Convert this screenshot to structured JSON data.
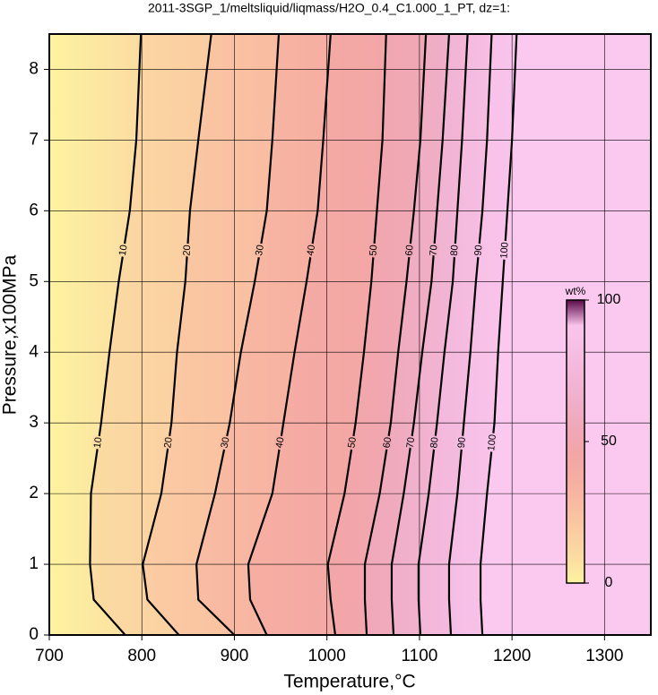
{
  "chart_data": {
    "type": "contour",
    "title": "2011-3SGP_1/meltsliquid/liqmass/H2O_0.4_C1.000_1_PT, dz=1:",
    "x_label": "Temperature,°C",
    "y_label": "Pressure,x100MPa",
    "xlim": [
      700,
      1350
    ],
    "ylim": [
      0,
      8.5
    ],
    "xticks": [
      700,
      800,
      900,
      1000,
      1100,
      1200,
      1300
    ],
    "yticks": [
      0,
      1,
      2,
      3,
      4,
      5,
      6,
      7,
      8
    ],
    "grid": true,
    "y": [
      0,
      0.5,
      1,
      2,
      3,
      4,
      5,
      6,
      7,
      8.5
    ],
    "base_color": "#fdf3a0",
    "beyond_color": "#fbc9f0",
    "series": [
      {
        "name": "10",
        "color": "#fbdca2",
        "values": [
          782,
          748,
          744,
          745,
          756,
          765,
          775,
          787,
          794,
          799
        ]
      },
      {
        "name": "20",
        "color": "#fbcca2",
        "values": [
          840,
          806,
          801,
          821,
          832,
          838,
          847,
          852,
          861,
          875
        ]
      },
      {
        "name": "30",
        "color": "#f9bca2",
        "values": [
          900,
          861,
          859,
          879,
          895,
          907,
          922,
          935,
          941,
          948
        ]
      },
      {
        "name": "40",
        "color": "#f6aea2",
        "values": [
          935,
          917,
          915,
          941,
          953,
          965,
          978,
          990,
          996,
          1004
        ]
      },
      {
        "name": "50",
        "color": "#f3a6a6",
        "values": [
          1009,
          1004,
          1001,
          1019,
          1031,
          1040,
          1048,
          1054,
          1060,
          1064
        ]
      },
      {
        "name": "60",
        "color": "#f0a8b8",
        "values": [
          1043,
          1041,
          1041,
          1057,
          1069,
          1077,
          1086,
          1094,
          1101,
          1107
        ]
      },
      {
        "name": "70",
        "color": "#f0afc8",
        "values": [
          1072,
          1070,
          1070,
          1083,
          1094,
          1103,
          1113,
          1119,
          1125,
          1132
        ]
      },
      {
        "name": "80",
        "color": "#f3b6d8",
        "values": [
          1101,
          1099,
          1099,
          1110,
          1119,
          1127,
          1136,
          1141,
          1146,
          1152
        ]
      },
      {
        "name": "90",
        "color": "#f6bee4",
        "values": [
          1134,
          1132,
          1132,
          1141,
          1148,
          1155,
          1161,
          1168,
          1173,
          1178
        ]
      },
      {
        "name": "100",
        "color": "#f9c4ec",
        "values": [
          1168,
          1166,
          1166,
          1173,
          1181,
          1185,
          1190,
          1195,
          1200,
          1205
        ]
      }
    ],
    "colorbar": {
      "label": "wt%",
      "lim": [
        0,
        100
      ],
      "ticks": [
        0,
        50,
        100
      ],
      "top_color": "#5a0a4a"
    }
  }
}
